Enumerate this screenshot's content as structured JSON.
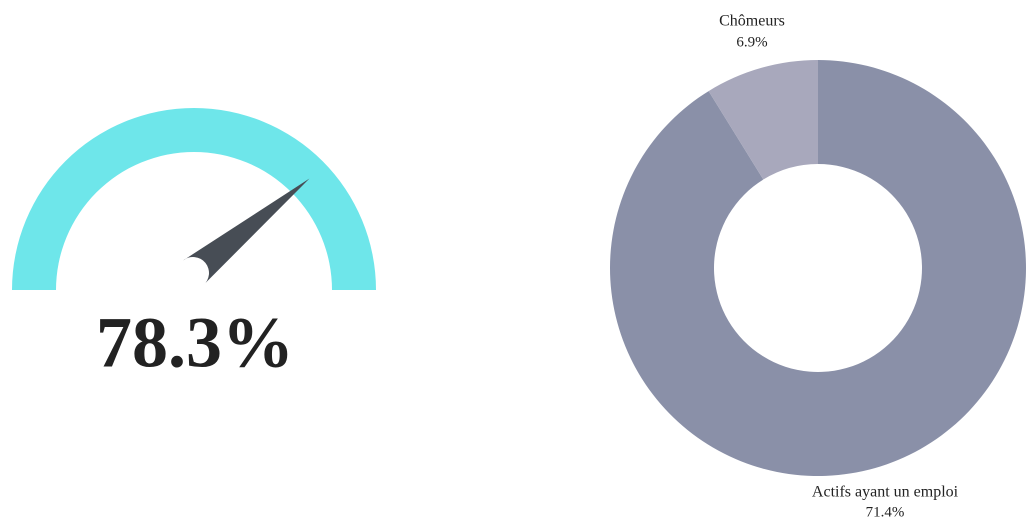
{
  "chart_data": [
    {
      "type": "gauge",
      "value": 78.3,
      "value_labels": [
        "78.3%"
      ],
      "ylim": [
        0,
        100
      ],
      "color": "#6ee6ea",
      "needle_color": "#474d55"
    },
    {
      "type": "donut",
      "categories": [
        "Actifs ayant un emploi",
        "Chômeurs"
      ],
      "values": [
        71.4,
        6.9
      ],
      "value_labels": [
        "71.4%",
        "6.9%"
      ],
      "colors": [
        "#8a90a8",
        "#a8a8bc"
      ]
    }
  ]
}
